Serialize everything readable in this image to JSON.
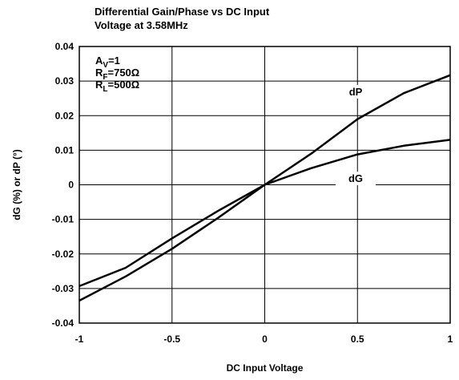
{
  "chart_data": {
    "type": "line",
    "title_lines": [
      "Differential Gain/Phase vs DC Input",
      "Voltage at 3.58MHz"
    ],
    "xlabel": "DC Input Voltage",
    "ylabel": "dG (%) or dP (°)",
    "xlim": [
      -1,
      1
    ],
    "ylim": [
      -0.04,
      0.04
    ],
    "x_ticks": [
      -1,
      -0.5,
      0,
      0.5,
      1
    ],
    "x_tick_labels": [
      "-1",
      "-0.5",
      "0",
      "0.5",
      "1"
    ],
    "y_ticks": [
      0.04,
      0.03,
      0.02,
      0.01,
      0,
      -0.01,
      -0.02,
      -0.03,
      -0.04
    ],
    "y_tick_labels": [
      "0.04",
      "0.03",
      "0.02",
      "0.01",
      "0",
      "-0.01",
      "-0.02",
      "-0.03",
      "-0.04"
    ],
    "grid": true,
    "annotations": [
      {
        "main": "A",
        "sub": "V",
        "rest": "=1"
      },
      {
        "main": "R",
        "sub": "F",
        "rest": "=750Ω"
      },
      {
        "main": "R",
        "sub": "L",
        "rest": "=500Ω"
      }
    ],
    "series": [
      {
        "name": "dP",
        "x": [
          -1,
          -0.75,
          -0.5,
          -0.25,
          0,
          0.25,
          0.5,
          0.75,
          1
        ],
        "y": [
          -0.0335,
          -0.0265,
          -0.0185,
          -0.0095,
          0.0,
          0.009,
          0.019,
          0.0265,
          0.0317
        ]
      },
      {
        "name": "dG",
        "x": [
          -1,
          -0.75,
          -0.5,
          -0.25,
          0,
          0.25,
          0.5,
          0.75,
          1
        ],
        "y": [
          -0.0293,
          -0.024,
          -0.0155,
          -0.0075,
          0.0,
          0.0048,
          0.0088,
          0.0113,
          0.013
        ]
      }
    ]
  }
}
